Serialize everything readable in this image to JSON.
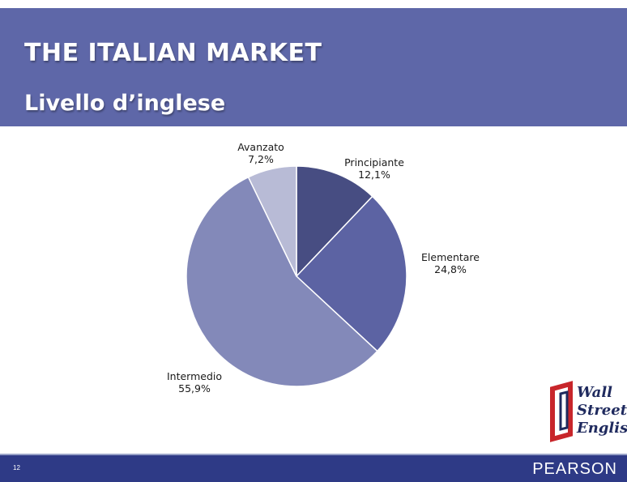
{
  "slide": {
    "title": "THE ITALIAN MARKET",
    "subtitle": "Livello d’inglese",
    "page_number": "12",
    "brand": "PEARSON",
    "logo_text": [
      "Wall",
      "Street",
      "English"
    ]
  },
  "colors": {
    "header": "#5e67a8",
    "footer": "#2e3a86",
    "logo_red": "#c8262b",
    "logo_navy": "#1f2a5e"
  },
  "chart_data": {
    "type": "pie",
    "title": "",
    "slices": [
      {
        "label": "Principiante",
        "value": 12.1,
        "display": "12,1%",
        "color": "#474d82"
      },
      {
        "label": "Elementare",
        "value": 24.8,
        "display": "24,8%",
        "color": "#5c63a3"
      },
      {
        "label": "Intermedio",
        "value": 55.9,
        "display": "55,9%",
        "color": "#8389b9"
      },
      {
        "label": "Avanzato",
        "value": 7.2,
        "display": "7,2%",
        "color": "#b8bbd6"
      }
    ],
    "start_angle": "12 o'clock",
    "direction": "clockwise",
    "legend": "none"
  }
}
